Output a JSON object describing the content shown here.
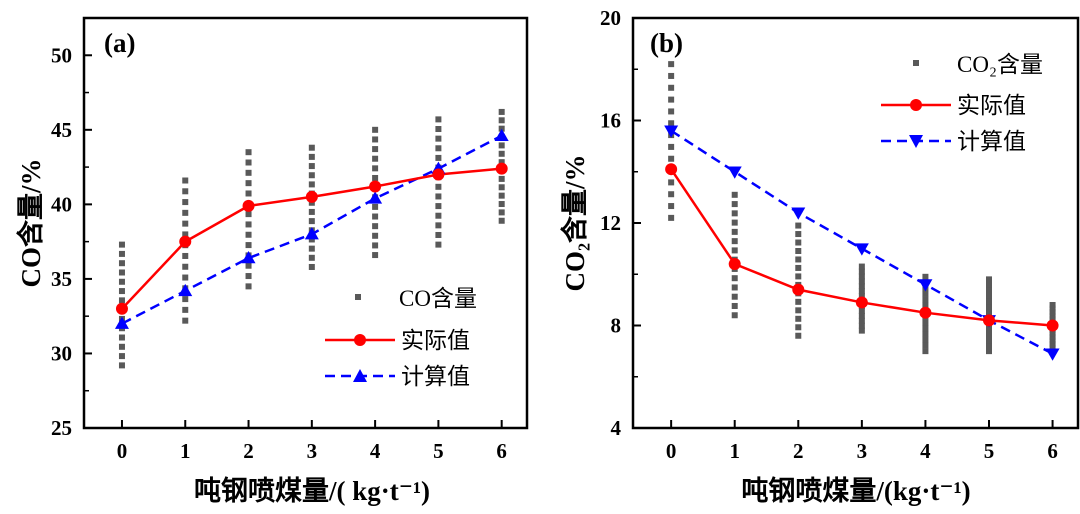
{
  "panels": [
    {
      "label": "(a)",
      "ylabel": "CO含量/%",
      "xlabel": "吨钢喷煤量/( kg·t⁻¹)",
      "xticks": [
        "0",
        "1",
        "2",
        "3",
        "4",
        "5",
        "6"
      ],
      "yticks": [
        "25",
        "30",
        "35",
        "40",
        "45",
        "50"
      ],
      "legend": {
        "scatter": "CO含量",
        "actual": "实际值",
        "calc": "计算值"
      }
    },
    {
      "label": "(b)",
      "ylabel": "CO₂含量/%",
      "xlabel": "吨钢喷煤量/(kg·t⁻¹)",
      "xticks": [
        "0",
        "1",
        "2",
        "3",
        "4",
        "5",
        "6"
      ],
      "yticks": [
        "4",
        "8",
        "12",
        "16",
        "20"
      ],
      "legend": {
        "scatter": "CO₂含量",
        "actual": "实际值",
        "calc": "计算值"
      }
    }
  ],
  "chart_data": [
    {
      "type": "scatter",
      "title": "(a)",
      "xlabel": "吨钢喷煤量/( kg·t⁻¹)",
      "ylabel": "CO含量/%",
      "xlim": [
        -0.6,
        6.4
      ],
      "ylim": [
        25,
        52.5
      ],
      "scatter_ranges": [
        {
          "x": 0,
          "min": 29.2,
          "max": 37.3
        },
        {
          "x": 1,
          "min": 32.2,
          "max": 41.6
        },
        {
          "x": 2,
          "min": 34.5,
          "max": 43.5
        },
        {
          "x": 3,
          "min": 35.8,
          "max": 43.8
        },
        {
          "x": 4,
          "min": 36.6,
          "max": 45.0
        },
        {
          "x": 5,
          "min": 37.3,
          "max": 45.7
        },
        {
          "x": 6,
          "min": 38.9,
          "max": 46.2
        }
      ],
      "series": [
        {
          "name": "实际值",
          "x": [
            0,
            1,
            2,
            3,
            4,
            5,
            6
          ],
          "values": [
            33.0,
            37.5,
            39.9,
            40.5,
            41.2,
            42.0,
            42.4
          ]
        },
        {
          "name": "计算值",
          "x": [
            0,
            1,
            2,
            3,
            4,
            5,
            6
          ],
          "values": [
            32.0,
            34.2,
            36.4,
            38.0,
            40.4,
            42.4,
            44.6
          ]
        }
      ],
      "colors": {
        "scatter": "#595959",
        "actual": "#ff0000",
        "calc": "#0000ff"
      }
    },
    {
      "type": "scatter",
      "title": "(b)",
      "xlabel": "吨钢喷煤量/(kg·t⁻¹)",
      "ylabel": "CO₂含量/%",
      "xlim": [
        -0.6,
        6.4
      ],
      "ylim": [
        4,
        20
      ],
      "scatter_ranges": [
        {
          "x": 0,
          "min": 12.2,
          "max": 18.2
        },
        {
          "x": 1,
          "min": 8.4,
          "max": 13.1
        },
        {
          "x": 2,
          "min": 7.6,
          "max": 11.9
        },
        {
          "x": 3,
          "min": 7.8,
          "max": 10.3
        },
        {
          "x": 4,
          "min": 7.0,
          "max": 9.9
        },
        {
          "x": 5,
          "min": 7.0,
          "max": 9.8
        },
        {
          "x": 6,
          "min": 7.0,
          "max": 8.8
        }
      ],
      "series": [
        {
          "name": "实际值",
          "x": [
            0,
            1,
            2,
            3,
            4,
            5,
            6
          ],
          "values": [
            14.1,
            10.4,
            9.4,
            8.9,
            8.5,
            8.2,
            8.0
          ]
        },
        {
          "name": "计算值",
          "x": [
            0,
            1,
            2,
            3,
            4,
            5,
            6
          ],
          "values": [
            15.6,
            14.0,
            12.4,
            11.0,
            9.6,
            8.2,
            6.9
          ]
        }
      ],
      "colors": {
        "scatter": "#595959",
        "actual": "#ff0000",
        "calc": "#0000ff"
      }
    }
  ]
}
